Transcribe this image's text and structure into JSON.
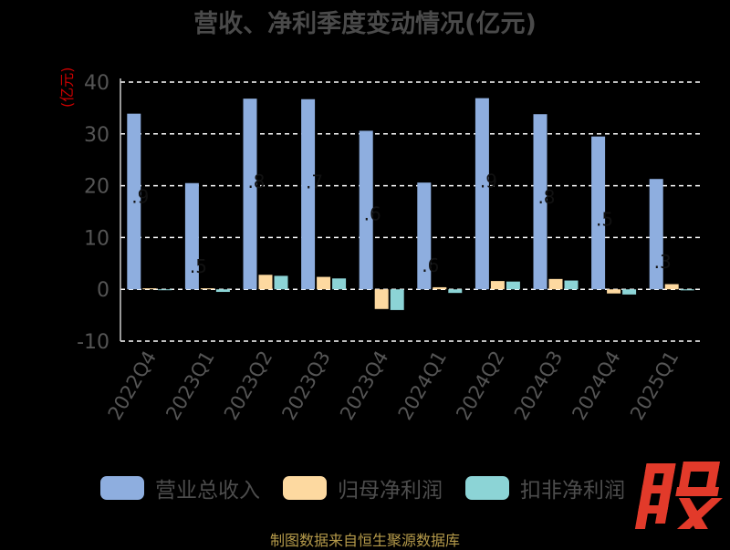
{
  "title": "营收、净利季度变动情况(亿元)",
  "y_unit": "(亿元)",
  "footer": "制图数据来自恒生聚源数据库",
  "brand_mark": "股",
  "colors": {
    "revenue": "#8eaedf",
    "net_profit": "#fdd9a0",
    "deducted_profit": "#8cd4d6",
    "grid": "#ffffff",
    "axis_text": "#555555",
    "brand": "#e23a2a"
  },
  "chart_data": {
    "type": "bar",
    "title": "营收、净利季度变动情况(亿元)",
    "ylabel": "(亿元)",
    "ylim": [
      -10,
      40
    ],
    "y_ticks": [
      40,
      30,
      20,
      10,
      0,
      -10
    ],
    "grid": true,
    "legend_position": "bottom",
    "categories": [
      "2022Q4",
      "2023Q1",
      "2023Q2",
      "2023Q3",
      "2023Q4",
      "2024Q1",
      "2024Q2",
      "2024Q3",
      "2024Q4",
      "2025Q1"
    ],
    "series": [
      {
        "name": "营业总收入",
        "color": "#8eaedf",
        "values": [
          33.9,
          20.5,
          36.8,
          36.7,
          30.6,
          20.6,
          36.9,
          33.8,
          29.5,
          21.3
        ]
      },
      {
        "name": "归母净利润",
        "color": "#fdd9a0",
        "values": [
          0.2,
          0.2,
          2.8,
          2.4,
          -3.8,
          0.4,
          1.6,
          2.0,
          -0.8,
          1.0
        ]
      },
      {
        "name": "扣非净利润",
        "color": "#8cd4d6",
        "values": [
          -0.1,
          -0.5,
          2.6,
          2.1,
          -4.0,
          -0.7,
          1.5,
          1.7,
          -1.0,
          -0.2
        ]
      }
    ],
    "data_labels": [
      ".9",
      ".5",
      ".8",
      ".7",
      ".6",
      ".6",
      ".9",
      ".8",
      ".5",
      ".3"
    ]
  }
}
